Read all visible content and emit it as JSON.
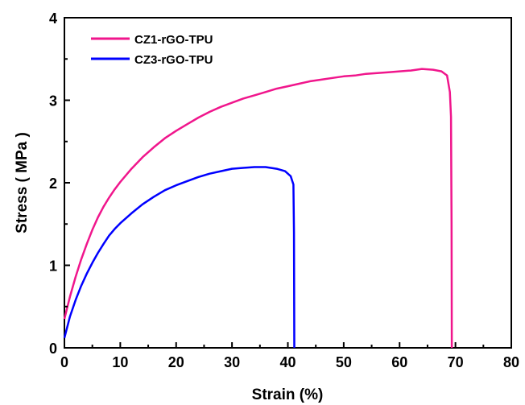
{
  "chart_data": {
    "type": "line",
    "title": "",
    "xlabel": "Strain (%)",
    "ylabel": "Stress ( MPa )",
    "xlim": [
      0,
      80
    ],
    "ylim": [
      0,
      4
    ],
    "xticks": [
      0,
      10,
      20,
      30,
      40,
      50,
      60,
      70,
      80
    ],
    "yticks": [
      0,
      1,
      2,
      3,
      4
    ],
    "x_tick_labels": [
      "0",
      "10",
      "20",
      "30",
      "40",
      "50",
      "60",
      "70",
      "80"
    ],
    "y_tick_labels": [
      "0",
      "1",
      "2",
      "3",
      "4"
    ],
    "grid": false,
    "legend_position": "top-left",
    "series": [
      {
        "name": "CZ1-rGO-TPU",
        "color": "#f0168c",
        "points": [
          [
            0,
            0.35
          ],
          [
            1,
            0.62
          ],
          [
            2,
            0.86
          ],
          [
            3,
            1.07
          ],
          [
            4,
            1.26
          ],
          [
            5,
            1.43
          ],
          [
            6,
            1.58
          ],
          [
            7,
            1.71
          ],
          [
            8,
            1.82
          ],
          [
            9,
            1.92
          ],
          [
            10,
            2.01
          ],
          [
            12,
            2.17
          ],
          [
            14,
            2.31
          ],
          [
            16,
            2.43
          ],
          [
            18,
            2.54
          ],
          [
            20,
            2.63
          ],
          [
            22,
            2.71
          ],
          [
            24,
            2.79
          ],
          [
            26,
            2.86
          ],
          [
            28,
            2.92
          ],
          [
            30,
            2.97
          ],
          [
            32,
            3.02
          ],
          [
            34,
            3.06
          ],
          [
            36,
            3.1
          ],
          [
            38,
            3.14
          ],
          [
            40,
            3.17
          ],
          [
            42,
            3.2
          ],
          [
            44,
            3.23
          ],
          [
            46,
            3.25
          ],
          [
            48,
            3.27
          ],
          [
            50,
            3.29
          ],
          [
            52,
            3.3
          ],
          [
            54,
            3.32
          ],
          [
            56,
            3.33
          ],
          [
            58,
            3.34
          ],
          [
            60,
            3.35
          ],
          [
            62,
            3.36
          ],
          [
            64,
            3.38
          ],
          [
            66,
            3.37
          ],
          [
            67.5,
            3.35
          ],
          [
            68.5,
            3.3
          ],
          [
            69,
            3.1
          ],
          [
            69.2,
            2.8
          ],
          [
            69.3,
            1.5
          ],
          [
            69.35,
            0
          ]
        ]
      },
      {
        "name": "CZ3-rGO-TPU",
        "color": "#0000ff",
        "points": [
          [
            0,
            0.12
          ],
          [
            1,
            0.38
          ],
          [
            2,
            0.58
          ],
          [
            3,
            0.75
          ],
          [
            4,
            0.9
          ],
          [
            5,
            1.03
          ],
          [
            6,
            1.15
          ],
          [
            7,
            1.26
          ],
          [
            8,
            1.36
          ],
          [
            9,
            1.44
          ],
          [
            10,
            1.51
          ],
          [
            12,
            1.63
          ],
          [
            14,
            1.74
          ],
          [
            16,
            1.83
          ],
          [
            18,
            1.91
          ],
          [
            20,
            1.97
          ],
          [
            22,
            2.02
          ],
          [
            24,
            2.07
          ],
          [
            26,
            2.11
          ],
          [
            28,
            2.14
          ],
          [
            30,
            2.17
          ],
          [
            32,
            2.18
          ],
          [
            34,
            2.19
          ],
          [
            36,
            2.19
          ],
          [
            38,
            2.17
          ],
          [
            39.5,
            2.14
          ],
          [
            40.5,
            2.08
          ],
          [
            41,
            1.98
          ],
          [
            41.1,
            1.4
          ],
          [
            41.15,
            0
          ]
        ]
      }
    ]
  }
}
